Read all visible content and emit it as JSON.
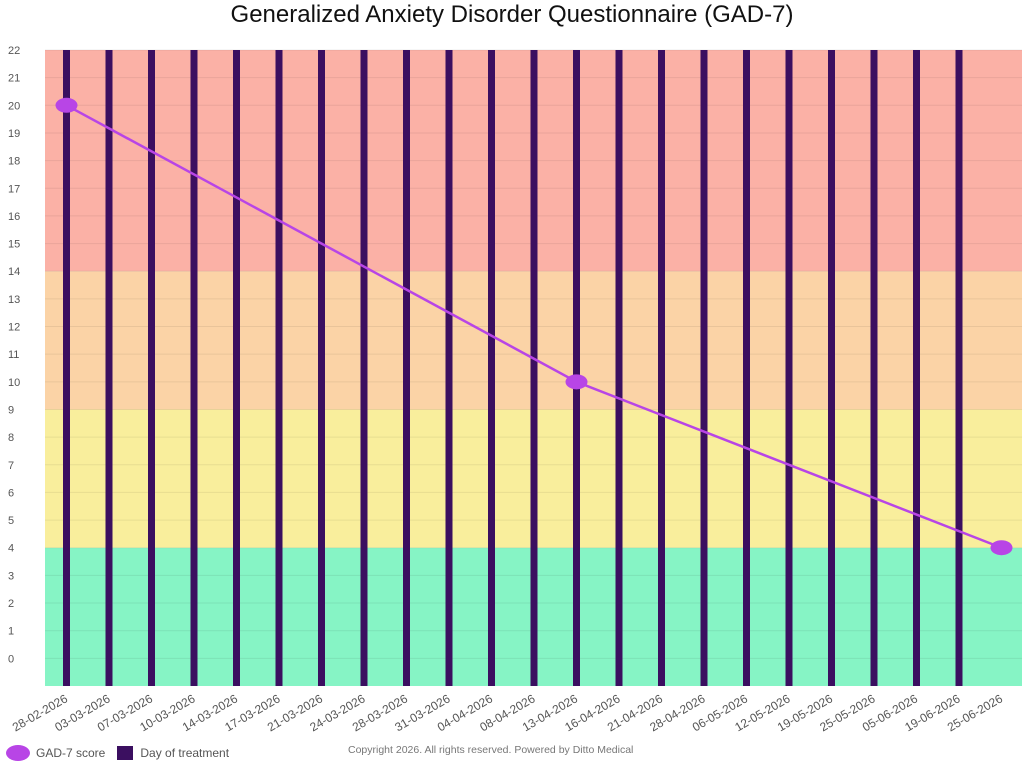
{
  "colors": {
    "severe": "#fbb1a6",
    "moderate": "#fbd3a6",
    "mild": "#f9ee9c",
    "minimal": "#86f4c5",
    "score_line": "#b845e6",
    "treatment_bar": "#3b0f60"
  },
  "legend": {
    "items": [
      {
        "label": "GAD-7 score",
        "shape": "circle",
        "color": "#b845e6"
      },
      {
        "label": "Day of treatment",
        "shape": "square",
        "color": "#3b0f60"
      }
    ]
  },
  "footer": {
    "copyright": "Copyright  2026. All rights reserved. Powered by Ditto Medical"
  },
  "chart_data": {
    "type": "line",
    "title": "Generalized Anxiety Disorder Questionnaire (GAD-7)",
    "xlabel": "",
    "ylabel": "",
    "ylim": [
      -1,
      22
    ],
    "yticks": [
      0,
      1,
      2,
      3,
      4,
      5,
      6,
      7,
      8,
      9,
      10,
      11,
      12,
      13,
      14,
      15,
      16,
      17,
      18,
      19,
      20,
      21,
      22
    ],
    "grid": true,
    "legend_position": "bottom-left",
    "categories": [
      "28-02-2026",
      "03-03-2026",
      "07-03-2026",
      "10-03-2026",
      "14-03-2026",
      "17-03-2026",
      "21-03-2026",
      "24-03-2026",
      "28-03-2026",
      "31-03-2026",
      "04-04-2026",
      "08-04-2026",
      "13-04-2026",
      "16-04-2026",
      "21-04-2026",
      "28-04-2026",
      "06-05-2026",
      "12-05-2026",
      "19-05-2026",
      "25-05-2026",
      "05-06-2026",
      "19-06-2026",
      "25-06-2026"
    ],
    "bands": [
      {
        "from": -1,
        "to": 4,
        "color": "#86f4c5"
      },
      {
        "from": 4,
        "to": 9,
        "color": "#f9ee9c"
      },
      {
        "from": 9,
        "to": 14,
        "color": "#fbd3a6"
      },
      {
        "from": 14,
        "to": 22,
        "color": "#fbb1a6"
      }
    ],
    "series": [
      {
        "name": "GAD-7 score",
        "type": "line",
        "points": [
          {
            "x": "28-02-2026",
            "y": 20
          },
          {
            "x": "13-04-2026",
            "y": 10
          },
          {
            "x": "25-06-2026",
            "y": 4
          }
        ]
      },
      {
        "name": "Day of treatment",
        "type": "bar",
        "x": [
          "28-02-2026",
          "03-03-2026",
          "07-03-2026",
          "10-03-2026",
          "14-03-2026",
          "17-03-2026",
          "21-03-2026",
          "24-03-2026",
          "28-03-2026",
          "31-03-2026",
          "04-04-2026",
          "08-04-2026",
          "13-04-2026",
          "16-04-2026",
          "21-04-2026",
          "28-04-2026",
          "06-05-2026",
          "12-05-2026",
          "19-05-2026",
          "25-05-2026",
          "05-06-2026",
          "19-06-2026"
        ]
      }
    ]
  }
}
